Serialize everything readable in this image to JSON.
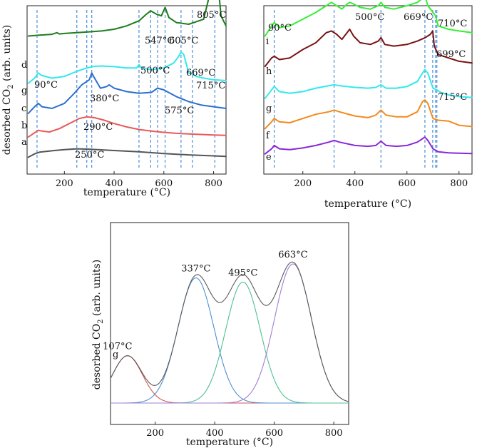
{
  "colors": {
    "a": "#555555",
    "b": "#e85a5a",
    "c": "#2a6fd0",
    "d": "#1e7d1e",
    "g": "#33e8ee",
    "e": "#8a28d8",
    "f": "#f38a1e",
    "h": "#7a1212",
    "i": "#33f033",
    "fit_g1": "#d45555",
    "fit_g2": "#4f8fcf",
    "fit_g3": "#4fc08f",
    "fit_g4": "#a07fd0",
    "fit_sum": "#5a5a5a",
    "dash": "#4a8fd9"
  },
  "chart_data": [
    {
      "type": "line",
      "panel": "top-left",
      "xlabel": "temperature (°C)",
      "ylabel": "desorbed CO2 (arb. units)",
      "xlim": [
        50,
        850
      ],
      "xticks": [
        "200",
        "400",
        "600",
        "800"
      ],
      "annotations": [
        {
          "text": "805°C",
          "x": 805,
          "series": "d"
        },
        {
          "text": "547°C",
          "x": 547,
          "series": "d"
        },
        {
          "text": "605°C",
          "x": 605,
          "series": "d"
        },
        {
          "text": "90°C",
          "x": 90,
          "series": "g"
        },
        {
          "text": "500°C",
          "x": 500,
          "series": "g"
        },
        {
          "text": "669°C",
          "x": 669,
          "series": "g"
        },
        {
          "text": "715°C",
          "x": 715,
          "series": "g"
        },
        {
          "text": "380°C",
          "x": 380,
          "series": "c"
        },
        {
          "text": "575°C",
          "x": 575,
          "series": "c"
        },
        {
          "text": "290°C",
          "x": 290,
          "series": "b"
        },
        {
          "text": "250°C",
          "x": 250,
          "series": "a"
        }
      ],
      "dashed_markers": [
        90,
        250,
        290,
        310,
        500,
        547,
        575,
        605,
        669,
        715,
        805
      ],
      "series": [
        {
          "name": "a",
          "base": 0.1,
          "x": [
            55,
            80,
            100,
            130,
            160,
            200,
            250,
            300,
            400,
            500,
            600,
            700,
            800,
            850
          ],
          "y": [
            0,
            0.02,
            0.03,
            0.035,
            0.04,
            0.045,
            0.05,
            0.048,
            0.04,
            0.032,
            0.022,
            0.014,
            0.008,
            0.005
          ]
        },
        {
          "name": "b",
          "base": 0.22,
          "x": [
            55,
            80,
            95,
            110,
            140,
            180,
            220,
            260,
            290,
            320,
            360,
            400,
            450,
            500,
            550,
            600,
            650,
            700,
            750,
            800,
            850
          ],
          "y": [
            0,
            0.025,
            0.04,
            0.035,
            0.03,
            0.05,
            0.08,
            0.11,
            0.12,
            0.115,
            0.1,
            0.08,
            0.06,
            0.045,
            0.035,
            0.028,
            0.022,
            0.018,
            0.015,
            0.012,
            0.01
          ]
        },
        {
          "name": "c",
          "base": 0.36,
          "x": [
            55,
            80,
            95,
            110,
            150,
            200,
            240,
            270,
            300,
            310,
            325,
            345,
            370,
            380,
            400,
            450,
            500,
            550,
            575,
            600,
            650,
            700,
            750,
            800,
            850
          ],
          "y": [
            0,
            0.04,
            0.06,
            0.04,
            0.03,
            0.06,
            0.12,
            0.17,
            0.2,
            0.24,
            0.2,
            0.15,
            0.16,
            0.17,
            0.15,
            0.13,
            0.12,
            0.125,
            0.15,
            0.14,
            0.1,
            0.07,
            0.05,
            0.04,
            0.03
          ]
        },
        {
          "name": "g",
          "base": 0.54,
          "x": [
            55,
            80,
            95,
            110,
            150,
            200,
            250,
            290,
            320,
            350,
            400,
            450,
            490,
            500,
            510,
            550,
            600,
            640,
            660,
            669,
            680,
            700,
            715,
            730,
            760,
            800,
            850
          ],
          "y": [
            0,
            0.03,
            0.06,
            0.045,
            0.03,
            0.04,
            0.07,
            0.09,
            0.1,
            0.102,
            0.098,
            0.09,
            0.09,
            0.11,
            0.09,
            0.08,
            0.09,
            0.12,
            0.16,
            0.185,
            0.17,
            0.06,
            0.055,
            0.04,
            0.03,
            0.02,
            0.015
          ]
        },
        {
          "name": "d",
          "base": 0.82,
          "x": [
            55,
            100,
            150,
            170,
            180,
            200,
            250,
            300,
            350,
            400,
            450,
            500,
            530,
            547,
            570,
            590,
            605,
            620,
            650,
            700,
            760,
            785,
            800,
            805,
            815,
            830,
            850
          ],
          "y": [
            0,
            0.005,
            0.01,
            0.02,
            0.012,
            0.015,
            0.02,
            0.025,
            0.03,
            0.04,
            0.06,
            0.09,
            0.13,
            0.15,
            0.13,
            0.12,
            0.17,
            0.11,
            0.08,
            0.07,
            0.1,
            0.25,
            0.42,
            0.45,
            0.35,
            0.12,
            0.06
          ]
        }
      ]
    },
    {
      "type": "line",
      "panel": "top-right",
      "xlabel": "temperature (°C)",
      "xlim": [
        50,
        850
      ],
      "xticks": [
        "200",
        "400",
        "600",
        "800"
      ],
      "annotations": [
        {
          "text": "90°C",
          "x": 90,
          "series": "i"
        },
        {
          "text": "500°C",
          "x": 500,
          "series": "i"
        },
        {
          "text": "669°C",
          "x": 669,
          "series": "i"
        },
        {
          "text": "710°C",
          "x": 710,
          "series": "i"
        },
        {
          "text": "699°C",
          "x": 699,
          "series": "h"
        },
        {
          "text": "715°C",
          "x": 715,
          "series": "g"
        }
      ],
      "dashed_markers": [
        90,
        320,
        500,
        669,
        699,
        710,
        715
      ],
      "series": [
        {
          "name": "e",
          "base": 0.12,
          "x": [
            55,
            80,
            90,
            110,
            150,
            200,
            250,
            300,
            320,
            340,
            400,
            450,
            480,
            500,
            520,
            560,
            600,
            640,
            660,
            669,
            680,
            700,
            720,
            760,
            800,
            850
          ],
          "y": [
            0,
            0.03,
            0.05,
            0.03,
            0.025,
            0.035,
            0.05,
            0.07,
            0.08,
            0.07,
            0.05,
            0.045,
            0.05,
            0.075,
            0.05,
            0.045,
            0.05,
            0.07,
            0.09,
            0.1,
            0.08,
            0.03,
            0.012,
            0.006,
            0.004,
            0.002
          ]
        },
        {
          "name": "f",
          "base": 0.27,
          "x": [
            55,
            80,
            90,
            110,
            150,
            200,
            250,
            300,
            320,
            340,
            400,
            450,
            480,
            500,
            520,
            560,
            600,
            640,
            660,
            669,
            680,
            700,
            720,
            760,
            800,
            850
          ],
          "y": [
            0,
            0.04,
            0.06,
            0.04,
            0.035,
            0.06,
            0.085,
            0.1,
            0.11,
            0.1,
            0.075,
            0.065,
            0.08,
            0.11,
            0.08,
            0.07,
            0.07,
            0.1,
            0.16,
            0.17,
            0.15,
            0.06,
            0.05,
            0.045,
            0.02,
            0.012
          ]
        },
        {
          "name": "g",
          "base": 0.45,
          "x": [
            55,
            80,
            90,
            110,
            150,
            200,
            250,
            300,
            320,
            340,
            400,
            450,
            480,
            500,
            520,
            560,
            600,
            640,
            660,
            669,
            680,
            700,
            715,
            730,
            760,
            800,
            850
          ],
          "y": [
            0,
            0.05,
            0.07,
            0.04,
            0.03,
            0.04,
            0.06,
            0.075,
            0.08,
            0.075,
            0.065,
            0.06,
            0.065,
            0.08,
            0.06,
            0.06,
            0.07,
            0.1,
            0.15,
            0.17,
            0.15,
            0.06,
            0.05,
            0.035,
            0.02,
            0.01,
            0.005
          ]
        },
        {
          "name": "h",
          "base": 0.64,
          "x": [
            55,
            80,
            90,
            110,
            150,
            200,
            250,
            290,
            310,
            330,
            350,
            370,
            380,
            395,
            420,
            460,
            490,
            500,
            515,
            550,
            600,
            640,
            670,
            690,
            699,
            705,
            720,
            760,
            800,
            850
          ],
          "y": [
            0,
            0.05,
            0.06,
            0.04,
            0.05,
            0.1,
            0.14,
            0.2,
            0.21,
            0.19,
            0.16,
            0.2,
            0.22,
            0.18,
            0.14,
            0.13,
            0.15,
            0.17,
            0.13,
            0.12,
            0.13,
            0.15,
            0.17,
            0.19,
            0.21,
            0.12,
            0.07,
            0.05,
            0.03,
            0.02
          ]
        },
        {
          "name": "i",
          "base": 0.82,
          "x": [
            55,
            80,
            90,
            110,
            150,
            200,
            250,
            290,
            310,
            330,
            350,
            370,
            380,
            395,
            420,
            460,
            490,
            500,
            515,
            550,
            600,
            640,
            665,
            669,
            680,
            700,
            710,
            720,
            760,
            800,
            850
          ],
          "y": [
            0,
            0.06,
            0.08,
            0.05,
            0.06,
            0.1,
            0.14,
            0.18,
            0.2,
            0.18,
            0.16,
            0.19,
            0.2,
            0.19,
            0.17,
            0.16,
            0.18,
            0.2,
            0.17,
            0.16,
            0.18,
            0.2,
            0.23,
            0.24,
            0.18,
            0.14,
            0.12,
            0.06,
            0.04,
            0.03,
            0.02
          ]
        }
      ]
    },
    {
      "type": "line",
      "panel": "bottom",
      "xlabel": "temperature (°C)",
      "ylabel": "desorbed CO2 (arb. units)",
      "xlim": [
        50,
        850
      ],
      "xticks": [
        "200",
        "400",
        "600",
        "800"
      ],
      "series_label": "g",
      "peaks": [
        {
          "name": "peak-1",
          "center": 107,
          "height": 0.34,
          "width": 50,
          "label": "107°C"
        },
        {
          "name": "peak-2",
          "center": 337,
          "height": 0.9,
          "width": 60,
          "label": "337°C"
        },
        {
          "name": "peak-3",
          "center": 495,
          "height": 0.87,
          "width": 58,
          "label": "495°C"
        },
        {
          "name": "peak-4",
          "center": 663,
          "height": 1.0,
          "width": 62,
          "label": "663°C"
        }
      ],
      "baseline": 0.0
    }
  ]
}
